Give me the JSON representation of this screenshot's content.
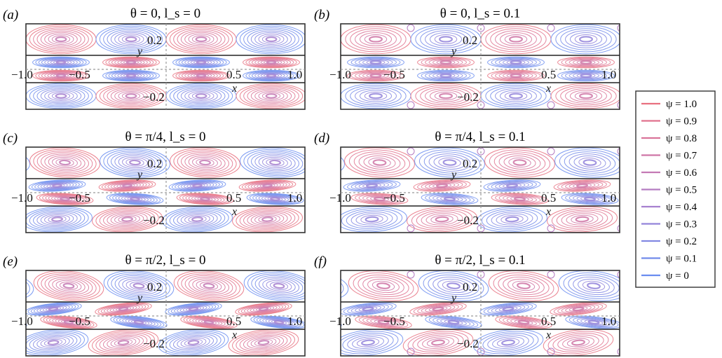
{
  "panels": [
    {
      "label": "(a)",
      "title": "θ = 0, l_s = 0",
      "theta": 0,
      "ls": 0
    },
    {
      "label": "(b)",
      "title": "θ = 0, l_s = 0.1",
      "theta": 0,
      "ls": 0.1
    },
    {
      "label": "(c)",
      "title": "θ = π/4, l_s = 0",
      "theta": 0.785,
      "ls": 0
    },
    {
      "label": "(d)",
      "title": "θ = π/4, l_s = 0.1",
      "theta": 0.785,
      "ls": 0.1
    },
    {
      "label": "(e)",
      "title": "θ = π/2, l_s = 0",
      "theta": 1.571,
      "ls": 0
    },
    {
      "label": "(f)",
      "title": "θ = π/2, l_s = 0.1",
      "theta": 1.571,
      "ls": 0.1
    }
  ],
  "axes": {
    "x_label": "x",
    "y_label": "y",
    "x_ticks": [
      "−1.0",
      "−0.5",
      "0.5",
      "1.0"
    ],
    "x_tick_values": [
      -1.0,
      -0.5,
      0.5,
      1.0
    ],
    "y_ticks": [
      "0.2",
      "−0.2"
    ],
    "y_tick_values": [
      0.2,
      -0.2
    ]
  },
  "legend": {
    "entries": [
      {
        "label": "ψ = 1.0",
        "color": "#e8707f"
      },
      {
        "label": "ψ = 0.9",
        "color": "#e0728e"
      },
      {
        "label": "ψ = 0.8",
        "color": "#d97499"
      },
      {
        "label": "ψ = 0.7",
        "color": "#cf76a6"
      },
      {
        "label": "ψ = 0.6",
        "color": "#c479b4"
      },
      {
        "label": "ψ = 0.5",
        "color": "#b57cc2"
      },
      {
        "label": "ψ = 0.4",
        "color": "#a680cf"
      },
      {
        "label": "ψ = 0.3",
        "color": "#9384da"
      },
      {
        "label": "ψ = 0.2",
        "color": "#8288e3"
      },
      {
        "label": "ψ = 0.1",
        "color": "#728bea"
      },
      {
        "label": "ψ = 0",
        "color": "#6a8df0"
      }
    ]
  }
}
